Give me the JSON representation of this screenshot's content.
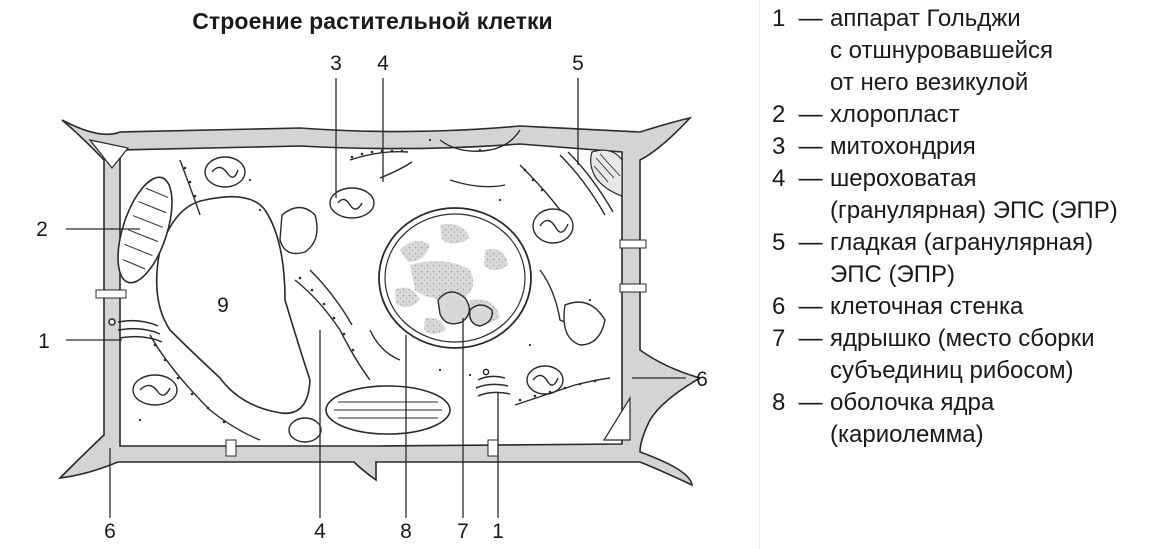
{
  "title": "Строение растительной клетки",
  "callouts": {
    "top_3": "3",
    "top_4": "4",
    "top_5": "5",
    "left_2": "2",
    "left_1": "1",
    "center_9": "9",
    "right_6": "6",
    "bottom_6": "6",
    "bottom_4": "4",
    "bottom_8": "8",
    "bottom_7": "7",
    "bottom_1": "1"
  },
  "legend": [
    {
      "num": "1",
      "dash": "—",
      "text": "аппарат Гольджи\nс отшнуровавшейся\nот него везикулой"
    },
    {
      "num": "2",
      "dash": "—",
      "text": "хлоропласт"
    },
    {
      "num": "3",
      "dash": "—",
      "text": "митохондрия"
    },
    {
      "num": "4",
      "dash": "—",
      "text": "шероховатая\n(гранулярная) ЭПС (ЭПР)"
    },
    {
      "num": "5",
      "dash": "—",
      "text": "гладкая (агранулярная)\nЭПС (ЭПР)"
    },
    {
      "num": "6",
      "dash": "—",
      "text": "клеточная стенка"
    },
    {
      "num": "7",
      "dash": "—",
      "text": "ядрышко (место сборки\nсубъединиц рибосом)"
    },
    {
      "num": "8",
      "dash": "—",
      "text": "оболочка ядра\n(кариолемма)"
    }
  ],
  "colors": {
    "wall": "#cfcfcf",
    "stroke": "#2a2a2a",
    "nucleolus_fill": "#d8d8d8"
  }
}
